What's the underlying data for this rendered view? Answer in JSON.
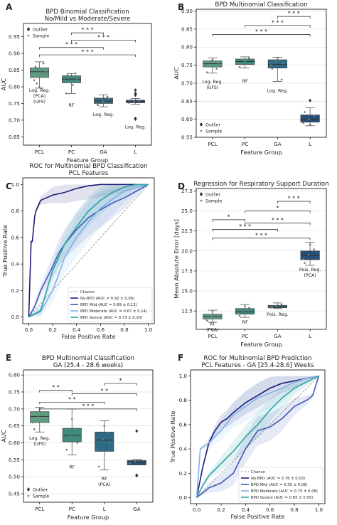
{
  "panels": [
    {
      "id": "A",
      "kind": "box",
      "title": [
        "BPD Binomial Classification",
        "No/Mild vs Moderate/Severe"
      ],
      "xlabel": "Feature Group",
      "ylabel": "AUC",
      "categories": [
        "PCL",
        "PC",
        "GA",
        "L"
      ],
      "ylim": [
        0.625,
        0.99
      ],
      "yticks": [
        0.65,
        0.7,
        0.75,
        0.8,
        0.85,
        0.9,
        0.95
      ],
      "yfmt": 2,
      "grid": false,
      "colors": [
        "#5c9e82",
        "#3e8c7c",
        "#2e6a86",
        "#264f78"
      ],
      "boxes": [
        {
          "q1": 0.828,
          "med": 0.845,
          "q3": 0.857,
          "lo": 0.796,
          "hi": 0.875,
          "pts": [
            0.83,
            0.85,
            0.87,
            0.82,
            0.8,
            0.84,
            0.86,
            0.835,
            0.845,
            0.81
          ],
          "out": []
        },
        {
          "q1": 0.812,
          "med": 0.823,
          "q3": 0.833,
          "lo": 0.78,
          "hi": 0.84,
          "pts": [
            0.82,
            0.83,
            0.84,
            0.78,
            0.815,
            0.825,
            0.835,
            0.805
          ],
          "out": []
        },
        {
          "q1": 0.75,
          "med": 0.757,
          "q3": 0.766,
          "lo": 0.74,
          "hi": 0.776,
          "pts": [
            0.75,
            0.76,
            0.77,
            0.745,
            0.755,
            0.765
          ],
          "out": []
        },
        {
          "q1": 0.752,
          "med": 0.756,
          "q3": 0.76,
          "lo": 0.748,
          "hi": 0.765,
          "pts": [
            0.752,
            0.756,
            0.758,
            0.76
          ],
          "out": [
            0.79,
            0.78,
            0.775,
            0.705,
            0.703
          ]
        }
      ],
      "annotations": [
        {
          "text": [
            "Log. Reg.",
            "(PCA)",
            "(UFS)"
          ],
          "cat": 0,
          "y": 0.785
        },
        {
          "text": [
            "RF"
          ],
          "cat": 1,
          "y": 0.74
        },
        {
          "text": [
            "Log. Reg."
          ],
          "cat": 2,
          "y": 0.712
        },
        {
          "text": [
            "Log. Reg."
          ],
          "cat": 3,
          "y": 0.675
        }
      ],
      "brackets": [
        {
          "from": 1,
          "to": 2,
          "y": 0.962,
          "label": "* * *"
        },
        {
          "from": 1,
          "to": 3,
          "y": 0.94,
          "label": "* * *"
        },
        {
          "from": 0,
          "to": 2,
          "y": 0.918,
          "label": "* * *"
        },
        {
          "from": 0,
          "to": 3,
          "y": 0.896,
          "label": "* * *"
        }
      ],
      "legend": {
        "pos": "top-left",
        "items": [
          "Outlier",
          "Sample"
        ]
      }
    },
    {
      "id": "B",
      "kind": "box",
      "title": [
        "BPD Multinomial Classification"
      ],
      "xlabel": "Feature Group",
      "ylabel": "AUC",
      "categories": [
        "PCL",
        "PC",
        "GA",
        "L"
      ],
      "ylim": [
        0.55,
        0.905
      ],
      "yticks": [
        0.55,
        0.6,
        0.65,
        0.7,
        0.75,
        0.8,
        0.85,
        0.9
      ],
      "yfmt": 2,
      "grid": true,
      "colors": [
        "#5c9e82",
        "#3e8c7c",
        "#2e6a86",
        "#264f78"
      ],
      "boxes": [
        {
          "q1": 0.745,
          "med": 0.754,
          "q3": 0.762,
          "lo": 0.728,
          "hi": 0.77,
          "pts": [
            0.75,
            0.76,
            0.74,
            0.73,
            0.765,
            0.755
          ],
          "out": []
        },
        {
          "q1": 0.752,
          "med": 0.76,
          "q3": 0.767,
          "lo": 0.742,
          "hi": 0.773,
          "pts": [
            0.755,
            0.765,
            0.77,
            0.745,
            0.76
          ],
          "out": []
        },
        {
          "q1": 0.742,
          "med": 0.752,
          "q3": 0.765,
          "lo": 0.705,
          "hi": 0.772,
          "pts": [
            0.75,
            0.76,
            0.71,
            0.74,
            0.77,
            0.755
          ],
          "out": []
        },
        {
          "q1": 0.592,
          "med": 0.6,
          "q3": 0.612,
          "lo": 0.582,
          "hi": 0.632,
          "pts": [
            0.59,
            0.6,
            0.61,
            0.62,
            0.585
          ],
          "out": [
            0.652
          ]
        }
      ],
      "annotations": [
        {
          "text": [
            "Log. Reg.",
            "(UFS)"
          ],
          "cat": 0,
          "y": 0.7
        },
        {
          "text": [
            "RF"
          ],
          "cat": 1,
          "y": 0.702
        },
        {
          "text": [
            "Log. Reg."
          ],
          "cat": 2,
          "y": 0.675
        }
      ],
      "brackets": [
        {
          "from": 2,
          "to": 3,
          "y": 0.885,
          "label": "* * *"
        },
        {
          "from": 1,
          "to": 3,
          "y": 0.86,
          "label": "* * *"
        },
        {
          "from": 0,
          "to": 3,
          "y": 0.835,
          "label": "* * *"
        }
      ],
      "legend": {
        "pos": "bottom-left",
        "items": [
          "Outlier",
          "Sample"
        ]
      }
    },
    {
      "id": "C",
      "kind": "roc",
      "title": [
        "ROC for Multinomial BPD Classification",
        "PCL Features"
      ],
      "xlabel": "False Positive Rate",
      "ylabel": "True Positive Rate",
      "xticks": [
        0.0,
        0.2,
        0.4,
        0.6,
        0.8,
        1.0
      ],
      "yticks": [
        0.0,
        0.2,
        0.4,
        0.6,
        0.8,
        1.0
      ],
      "series": [
        {
          "name": "No-BPD (AUC = 0.92 ± 0.06)",
          "color": "#1c1c78",
          "band": 0.1,
          "x": [
            0,
            0.02,
            0.03,
            0.05,
            0.06,
            0.08,
            0.1,
            0.15,
            0.2,
            0.3,
            0.4,
            0.5,
            0.6,
            0.8,
            1.0
          ],
          "y": [
            0,
            0.57,
            0.57,
            0.76,
            0.8,
            0.84,
            0.88,
            0.9,
            0.92,
            0.94,
            0.97,
            0.99,
            1.0,
            1.0,
            1.0
          ]
        },
        {
          "name": "BPD Mild (AUC = 0.69 ± 0.13)",
          "color": "#3b58b8",
          "band": 0.14,
          "x": [
            0,
            0.05,
            0.1,
            0.2,
            0.25,
            0.3,
            0.4,
            0.5,
            0.6,
            0.7,
            0.8,
            0.9,
            1.0
          ],
          "y": [
            0,
            0.08,
            0.2,
            0.38,
            0.48,
            0.55,
            0.66,
            0.75,
            0.81,
            0.86,
            0.9,
            0.95,
            1.0
          ]
        },
        {
          "name": "BPD Moderate (AUC = 0.67 ± 0.14)",
          "color": "#7fb2e5",
          "band": 0.15,
          "x": [
            0,
            0.1,
            0.2,
            0.25,
            0.3,
            0.4,
            0.5,
            0.6,
            0.7,
            0.8,
            0.9,
            1.0
          ],
          "y": [
            0,
            0.04,
            0.2,
            0.32,
            0.45,
            0.6,
            0.72,
            0.82,
            0.89,
            0.95,
            0.98,
            1.0
          ]
        },
        {
          "name": "BPD Severe (AUC = 0.73 ± 0.10)",
          "color": "#2aa5a0",
          "band": 0.11,
          "x": [
            0,
            0.1,
            0.15,
            0.2,
            0.3,
            0.4,
            0.5,
            0.6,
            0.7,
            0.8,
            0.9,
            1.0
          ],
          "y": [
            0,
            0.05,
            0.2,
            0.35,
            0.55,
            0.68,
            0.8,
            0.88,
            0.94,
            0.98,
            1.0,
            1.0
          ]
        }
      ],
      "chance": "Chance"
    },
    {
      "id": "D",
      "kind": "box",
      "title": [
        "Regression for Respiratory Support Duration"
      ],
      "xlabel": "Feature Group",
      "ylabel": "Mean Absolute Error [days]",
      "categories": [
        "PCL",
        "PC",
        "GA",
        "L"
      ],
      "ylim": [
        10.2,
        27.8
      ],
      "yticks": [
        10.0,
        12.5,
        15.0,
        17.5,
        20.0,
        22.5,
        25.0,
        27.5
      ],
      "yfmt": 1,
      "grid": true,
      "colors": [
        "#5c9e82",
        "#3e8c7c",
        "#2e6a86",
        "#264f78"
      ],
      "boxes": [
        {
          "q1": 11.5,
          "med": 11.8,
          "q3": 12.1,
          "lo": 11.1,
          "hi": 12.6,
          "pts": [
            11.5,
            11.8,
            12.0,
            11.3,
            12.4
          ],
          "out": []
        },
        {
          "q1": 12.1,
          "med": 12.4,
          "q3": 12.8,
          "lo": 11.7,
          "hi": 13.3,
          "pts": [
            12.2,
            12.5,
            12.9,
            11.9,
            13.1
          ],
          "out": []
        },
        {
          "q1": 12.9,
          "med": 13.0,
          "q3": 13.2,
          "lo": 12.8,
          "hi": 13.5,
          "pts": [
            12.9,
            13.1,
            13.3,
            13.0
          ],
          "out": []
        },
        {
          "q1": 18.9,
          "med": 19.4,
          "q3": 20.0,
          "lo": 18.2,
          "hi": 21.1,
          "pts": [
            19.0,
            19.5,
            20.2,
            18.5,
            20.8
          ],
          "out": []
        }
      ],
      "annotations": [
        {
          "text": [
            "RF",
            "(PCA)"
          ],
          "cat": 0,
          "y": 10.7
        },
        {
          "text": [
            "RF"
          ],
          "cat": 1,
          "y": 10.9
        },
        {
          "text": [
            "Pois. Reg."
          ],
          "cat": 2,
          "y": 11.9
        },
        {
          "text": [
            "Pois. Reg.",
            "(PCA)"
          ],
          "cat": 3,
          "y": 17.5
        }
      ],
      "brackets": [
        {
          "from": 2,
          "to": 3,
          "y": 26.2,
          "label": "* * *"
        },
        {
          "from": 1,
          "to": 3,
          "y": 25.0,
          "label": "*"
        },
        {
          "from": 0,
          "to": 1,
          "y": 23.9,
          "label": "*"
        },
        {
          "from": 1,
          "to": 3,
          "y": 23.5,
          "label": "* * *"
        },
        {
          "from": 0,
          "to": 2,
          "y": 22.7,
          "label": "* * *"
        },
        {
          "from": 0,
          "to": 3,
          "y": 21.6,
          "label": "* * *"
        }
      ],
      "legend": {
        "pos": "top-left",
        "items": [
          "Outlier",
          "Sample"
        ]
      }
    },
    {
      "id": "E",
      "kind": "box",
      "title": [
        "BPD Multinomial Classification",
        "GA (25.4 - 28.6 weeks)"
      ],
      "xlabel": "Feature Group",
      "ylabel": "AUC",
      "categories": [
        "PCL",
        "PC",
        "L",
        "GA"
      ],
      "ylim": [
        0.425,
        0.815
      ],
      "yticks": [
        0.45,
        0.5,
        0.55,
        0.6,
        0.65,
        0.7,
        0.75,
        0.8
      ],
      "yfmt": 2,
      "grid": true,
      "colors": [
        "#5c9e82",
        "#3e8c7c",
        "#2e6a86",
        "#264f78"
      ],
      "boxes": [
        {
          "q1": 0.66,
          "med": 0.678,
          "q3": 0.692,
          "lo": 0.632,
          "hi": 0.705,
          "pts": [
            0.66,
            0.68,
            0.69,
            0.64,
            0.7,
            0.67
          ],
          "out": []
        },
        {
          "q1": 0.603,
          "med": 0.622,
          "q3": 0.643,
          "lo": 0.565,
          "hi": 0.7,
          "pts": [
            0.61,
            0.62,
            0.64,
            0.58,
            0.67,
            0.6
          ],
          "out": []
        },
        {
          "q1": 0.575,
          "med": 0.608,
          "q3": 0.632,
          "lo": 0.52,
          "hi": 0.665,
          "pts": [
            0.58,
            0.61,
            0.63,
            0.53,
            0.65,
            0.6
          ],
          "out": []
        },
        {
          "q1": 0.535,
          "med": 0.543,
          "q3": 0.548,
          "lo": 0.535,
          "hi": 0.552,
          "pts": [
            0.54,
            0.545,
            0.55
          ],
          "out": [
            0.635,
            0.505,
            0.503
          ]
        }
      ],
      "annotations": [
        {
          "text": [
            "Log. Reg.",
            "(UFS)"
          ],
          "cat": 0,
          "y": 0.61
        },
        {
          "text": [
            "RF"
          ],
          "cat": 1,
          "y": 0.525
        },
        {
          "text": [
            "RF",
            "(PCA)"
          ],
          "cat": 2,
          "y": 0.49
        }
      ],
      "brackets": [
        {
          "from": 2,
          "to": 3,
          "y": 0.775,
          "label": "*"
        },
        {
          "from": 0,
          "to": 1,
          "y": 0.755,
          "label": "* *"
        },
        {
          "from": 1,
          "to": 3,
          "y": 0.745,
          "label": "* *"
        },
        {
          "from": 0,
          "to": 2,
          "y": 0.72,
          "label": "* *"
        },
        {
          "from": 0,
          "to": 3,
          "y": 0.7,
          "label": "* * *"
        }
      ],
      "legend": {
        "pos": "bottom-left",
        "items": [
          "Outlier",
          "Sample"
        ]
      }
    },
    {
      "id": "F",
      "kind": "roc",
      "title": [
        "ROC for Multinomial BPD Prediction",
        "PCL Features - GA [25.4-28.6] Weeks"
      ],
      "xlabel": "False Positive Rate",
      "ylabel": "True Positive Rate",
      "xticks": [
        0.0,
        0.2,
        0.4,
        0.6,
        0.8,
        1.0
      ],
      "yticks": [
        0.0,
        0.2,
        0.4,
        0.6,
        0.8,
        1.0
      ],
      "series": [
        {
          "name": "No-BPD (AUC = 0.76 ± 0.03)",
          "color": "#1c1c78",
          "band": 0.1,
          "x": [
            0,
            0.05,
            0.1,
            0.15,
            0.2,
            0.25,
            0.3,
            0.4,
            0.5,
            0.6,
            0.7,
            0.8,
            0.9,
            1.0
          ],
          "y": [
            0,
            0.25,
            0.45,
            0.55,
            0.62,
            0.65,
            0.7,
            0.78,
            0.84,
            0.9,
            0.94,
            0.96,
            0.98,
            1.0
          ]
        },
        {
          "name": "BPD Mild (AUC = 0.55 ± 0.06)",
          "color": "#3b58b8",
          "band": 0.12,
          "x": [
            0,
            0.1,
            0.2,
            0.3,
            0.4,
            0.5,
            0.6,
            0.7,
            0.8,
            0.9,
            0.95,
            1.0
          ],
          "y": [
            0,
            0.08,
            0.12,
            0.2,
            0.4,
            0.55,
            0.58,
            0.65,
            0.75,
            0.8,
            0.84,
            1.0
          ]
        },
        {
          "name": "BPD Moderate (AUC = 0.75 ± 0.08)",
          "color": "#7fb2e5",
          "band": 0.13,
          "x": [
            0,
            0.03,
            0.1,
            0.2,
            0.3,
            0.4,
            0.5,
            0.6,
            0.7,
            0.8,
            0.9,
            1.0
          ],
          "y": [
            0,
            0.4,
            0.45,
            0.55,
            0.68,
            0.75,
            0.82,
            0.86,
            0.9,
            0.95,
            0.98,
            1.0
          ]
        },
        {
          "name": "BPD Severe (AUC = 0.65 ± 0.05)",
          "color": "#2aa5a0",
          "band": 0.1,
          "x": [
            0,
            0.05,
            0.1,
            0.2,
            0.3,
            0.4,
            0.5,
            0.6,
            0.7,
            0.8,
            0.9,
            1.0
          ],
          "y": [
            0,
            0.1,
            0.18,
            0.28,
            0.38,
            0.5,
            0.6,
            0.72,
            0.82,
            0.9,
            0.95,
            1.0
          ]
        }
      ],
      "chance": "Chance"
    }
  ]
}
